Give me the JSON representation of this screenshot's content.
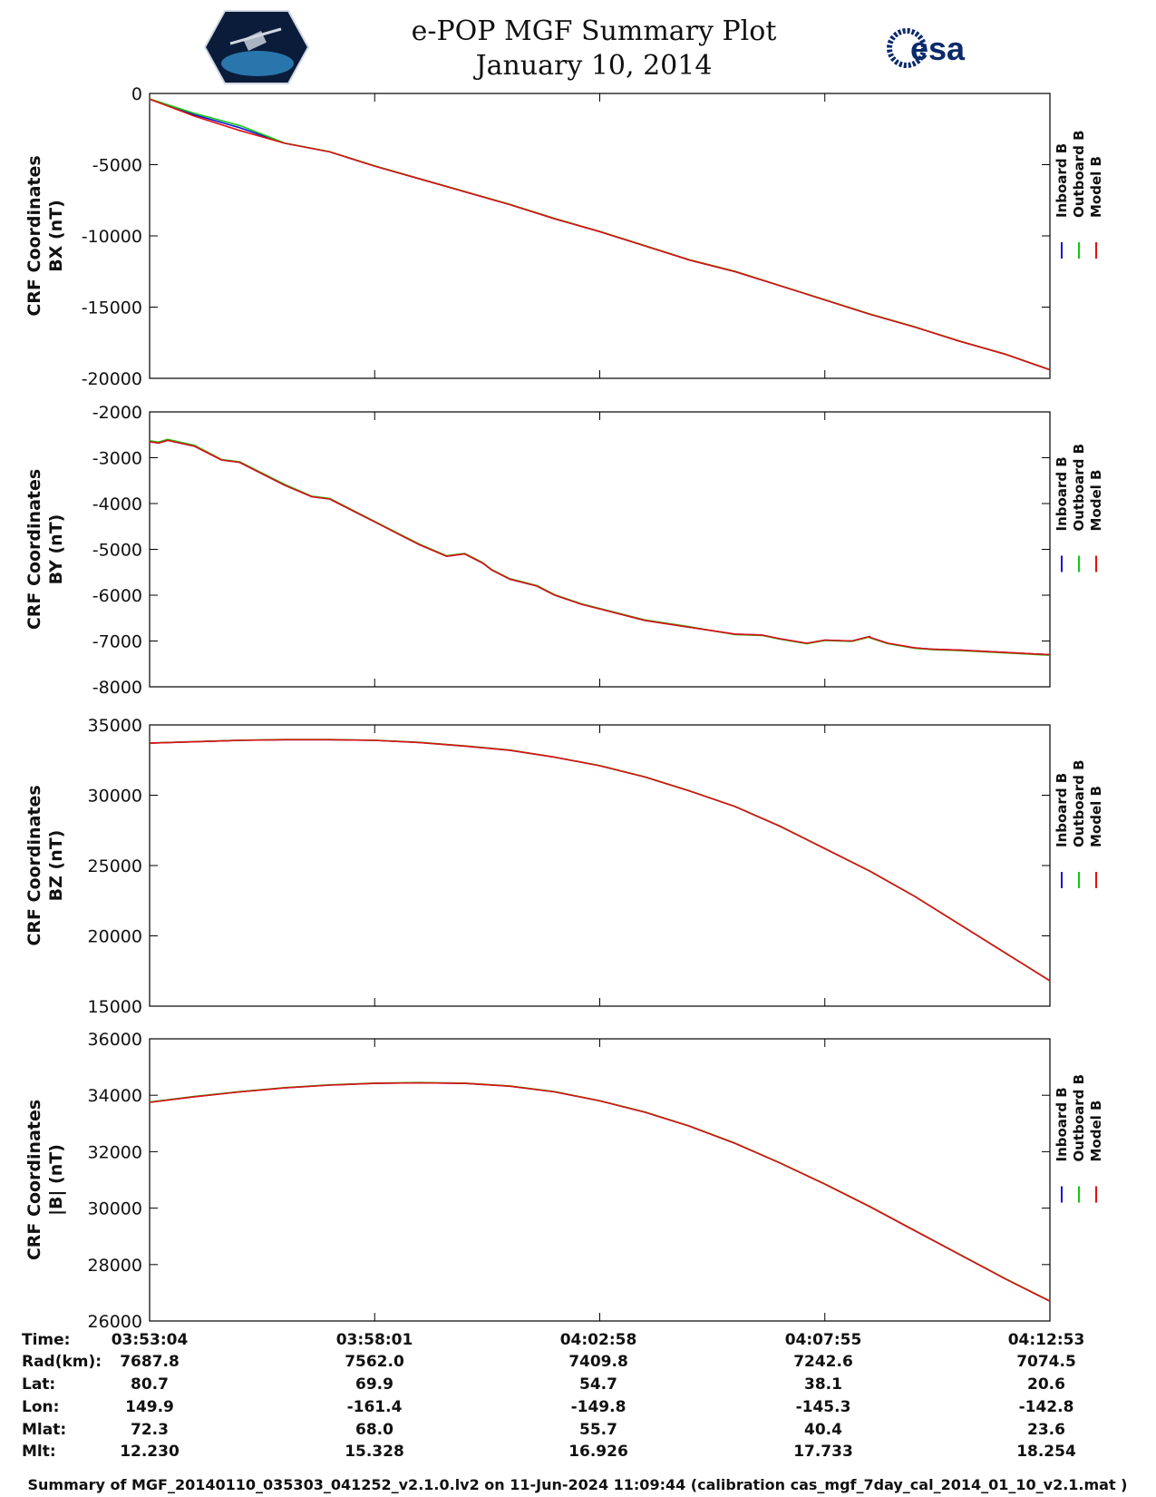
{
  "header": {
    "title": "e-POP MGF Summary Plot",
    "date": "January 10, 2014",
    "logo_left": "CASSIOPE",
    "logo_right": "esa"
  },
  "colors": {
    "inboard": "#1010d8",
    "outboard": "#10c810",
    "model": "#e01010",
    "axis": "#000000"
  },
  "legend": [
    {
      "label": "Inboard B",
      "color": "#1010d8"
    },
    {
      "label": "Outboard B",
      "color": "#10c810"
    },
    {
      "label": "Model B",
      "color": "#e01010"
    }
  ],
  "chart_data": [
    {
      "type": "line",
      "ylabel_line1": "CRF Coordinates",
      "ylabel_line2": "BX (nT)",
      "ylim": [
        -20000,
        0
      ],
      "yticks": [
        0,
        -5000,
        -10000,
        -15000,
        -20000
      ],
      "x": [
        0,
        0.05,
        0.1,
        0.15,
        0.2,
        0.25,
        0.3,
        0.35,
        0.4,
        0.45,
        0.5,
        0.55,
        0.6,
        0.65,
        0.7,
        0.75,
        0.8,
        0.85,
        0.9,
        0.95,
        1
      ],
      "series": [
        {
          "name": "Inboard B",
          "values": [
            -400,
            -1500,
            -2400,
            -3500,
            -4100,
            -5100,
            -6000,
            -6900,
            -7800,
            -8800,
            -9700,
            -10700,
            -11700,
            -12500,
            -13500,
            -14500,
            -15500,
            -16400,
            -17400,
            -18300,
            -19400
          ]
        },
        {
          "name": "Outboard B",
          "values": [
            -380,
            -1400,
            -2250,
            -3480,
            -4080,
            -5080,
            -5980,
            -6880,
            -7780,
            -8780,
            -9680,
            -10680,
            -11680,
            -12480,
            -13480,
            -14480,
            -15480,
            -16380,
            -17380,
            -18280,
            -19380
          ]
        },
        {
          "name": "Model B",
          "values": [
            -400,
            -1600,
            -2600,
            -3500,
            -4100,
            -5100,
            -6000,
            -6900,
            -7800,
            -8800,
            -9700,
            -10700,
            -11700,
            -12500,
            -13500,
            -14500,
            -15500,
            -16400,
            -17400,
            -18300,
            -19400
          ]
        }
      ]
    },
    {
      "type": "line",
      "ylabel_line1": "CRF Coordinates",
      "ylabel_line2": "BY (nT)",
      "ylim": [
        -8000,
        -2000
      ],
      "yticks": [
        -2000,
        -3000,
        -4000,
        -5000,
        -6000,
        -7000,
        -8000
      ],
      "x": [
        0,
        0.01,
        0.02,
        0.05,
        0.08,
        0.1,
        0.15,
        0.18,
        0.2,
        0.23,
        0.25,
        0.28,
        0.3,
        0.33,
        0.35,
        0.37,
        0.38,
        0.4,
        0.43,
        0.45,
        0.48,
        0.5,
        0.55,
        0.6,
        0.65,
        0.68,
        0.7,
        0.73,
        0.75,
        0.78,
        0.8,
        0.8,
        0.82,
        0.85,
        0.87,
        0.9,
        0.95,
        1
      ],
      "series": [
        {
          "name": "Inboard B",
          "values": [
            -2650,
            -2680,
            -2620,
            -2750,
            -3050,
            -3100,
            -3600,
            -3850,
            -3900,
            -4200,
            -4400,
            -4700,
            -4900,
            -5150,
            -5100,
            -5300,
            -5450,
            -5650,
            -5800,
            -6000,
            -6200,
            -6300,
            -6550,
            -6700,
            -6850,
            -6870,
            -6950,
            -7050,
            -6980,
            -7000,
            -6900,
            -6920,
            -7050,
            -7150,
            -7180,
            -7200,
            -7250,
            -7300
          ]
        },
        {
          "name": "Outboard B",
          "values": [
            -2630,
            -2660,
            -2600,
            -2730,
            -3040,
            -3090,
            -3580,
            -3840,
            -3890,
            -4190,
            -4390,
            -4690,
            -4890,
            -5140,
            -5090,
            -5290,
            -5440,
            -5640,
            -5790,
            -5990,
            -6190,
            -6290,
            -6540,
            -6690,
            -6860,
            -6880,
            -6960,
            -7060,
            -6990,
            -7010,
            -6910,
            -6930,
            -7060,
            -7160,
            -7190,
            -7210,
            -7260,
            -7310
          ]
        },
        {
          "name": "Model B",
          "values": [
            -2650,
            -2680,
            -2620,
            -2750,
            -3050,
            -3100,
            -3600,
            -3850,
            -3900,
            -4200,
            -4400,
            -4700,
            -4900,
            -5150,
            -5100,
            -5300,
            -5450,
            -5650,
            -5800,
            -6000,
            -6200,
            -6300,
            -6550,
            -6700,
            -6850,
            -6870,
            -6950,
            -7050,
            -6980,
            -7000,
            -6900,
            -6920,
            -7050,
            -7150,
            -7180,
            -7200,
            -7250,
            -7300
          ]
        }
      ]
    },
    {
      "type": "line",
      "ylabel_line1": "CRF Coordinates",
      "ylabel_line2": "BZ (nT)",
      "ylim": [
        15000,
        35000
      ],
      "yticks": [
        35000,
        30000,
        25000,
        20000,
        15000
      ],
      "x": [
        0,
        0.05,
        0.1,
        0.15,
        0.2,
        0.25,
        0.3,
        0.35,
        0.4,
        0.45,
        0.5,
        0.55,
        0.6,
        0.65,
        0.7,
        0.75,
        0.8,
        0.85,
        0.9,
        0.95,
        1
      ],
      "series": [
        {
          "name": "Inboard B",
          "values": [
            33700,
            33800,
            33900,
            33950,
            33950,
            33900,
            33750,
            33500,
            33200,
            32700,
            32100,
            31300,
            30300,
            29200,
            27800,
            26200,
            24600,
            22800,
            20800,
            18800,
            16800
          ]
        },
        {
          "name": "Outboard B",
          "values": [
            33710,
            33810,
            33910,
            33960,
            33960,
            33910,
            33760,
            33510,
            33210,
            32710,
            32110,
            31310,
            30310,
            29210,
            27810,
            26210,
            24610,
            22810,
            20810,
            18810,
            16810
          ]
        },
        {
          "name": "Model B",
          "values": [
            33700,
            33800,
            33900,
            33950,
            33950,
            33900,
            33750,
            33500,
            33200,
            32700,
            32100,
            31300,
            30300,
            29200,
            27800,
            26200,
            24600,
            22800,
            20800,
            18800,
            16800
          ]
        }
      ]
    },
    {
      "type": "line",
      "ylabel_line1": "CRF Coordinates",
      "ylabel_line2": "|B| (nT)",
      "ylim": [
        26000,
        36000
      ],
      "yticks": [
        36000,
        34000,
        32000,
        30000,
        28000,
        26000
      ],
      "x": [
        0,
        0.05,
        0.1,
        0.15,
        0.2,
        0.25,
        0.3,
        0.35,
        0.4,
        0.45,
        0.5,
        0.55,
        0.6,
        0.65,
        0.7,
        0.75,
        0.8,
        0.85,
        0.9,
        0.95,
        1
      ],
      "series": [
        {
          "name": "Inboard B",
          "values": [
            33750,
            33950,
            34120,
            34260,
            34360,
            34420,
            34440,
            34420,
            34320,
            34120,
            33800,
            33400,
            32900,
            32300,
            31600,
            30850,
            30050,
            29200,
            28350,
            27500,
            26700
          ]
        },
        {
          "name": "Outboard B",
          "values": [
            33760,
            33960,
            34130,
            34270,
            34370,
            34430,
            34450,
            34430,
            34330,
            34130,
            33810,
            33410,
            32910,
            32310,
            31610,
            30860,
            30060,
            29210,
            28360,
            27510,
            26710
          ]
        },
        {
          "name": "Model B",
          "values": [
            33750,
            33950,
            34120,
            34260,
            34360,
            34420,
            34440,
            34420,
            34320,
            34120,
            33800,
            33400,
            32900,
            32300,
            31600,
            30850,
            30050,
            29200,
            28350,
            27500,
            26700
          ]
        }
      ]
    }
  ],
  "info_table": {
    "row_labels": [
      "Time:",
      "Rad(km):",
      "Lat:",
      "Lon:",
      "Mlat:",
      "Mlt:"
    ],
    "columns": [
      [
        "03:53:04",
        "7687.8",
        "80.7",
        "149.9",
        "72.3",
        "12.230"
      ],
      [
        "03:58:01",
        "7562.0",
        "69.9",
        "-161.4",
        "68.0",
        "15.328"
      ],
      [
        "04:02:58",
        "7409.8",
        "54.7",
        "-149.8",
        "55.7",
        "16.926"
      ],
      [
        "04:07:55",
        "7242.6",
        "38.1",
        "-145.3",
        "40.4",
        "17.733"
      ],
      [
        "04:12:53",
        "7074.5",
        "20.6",
        "-142.8",
        "23.6",
        "18.254"
      ]
    ]
  },
  "footer": "Summary of MGF_20140110_035303_041252_v2.1.0.lv2 on 11-Jun-2024 11:09:44 (calibration cas_mgf_7day_cal_2014_01_10_v2.1.mat )"
}
